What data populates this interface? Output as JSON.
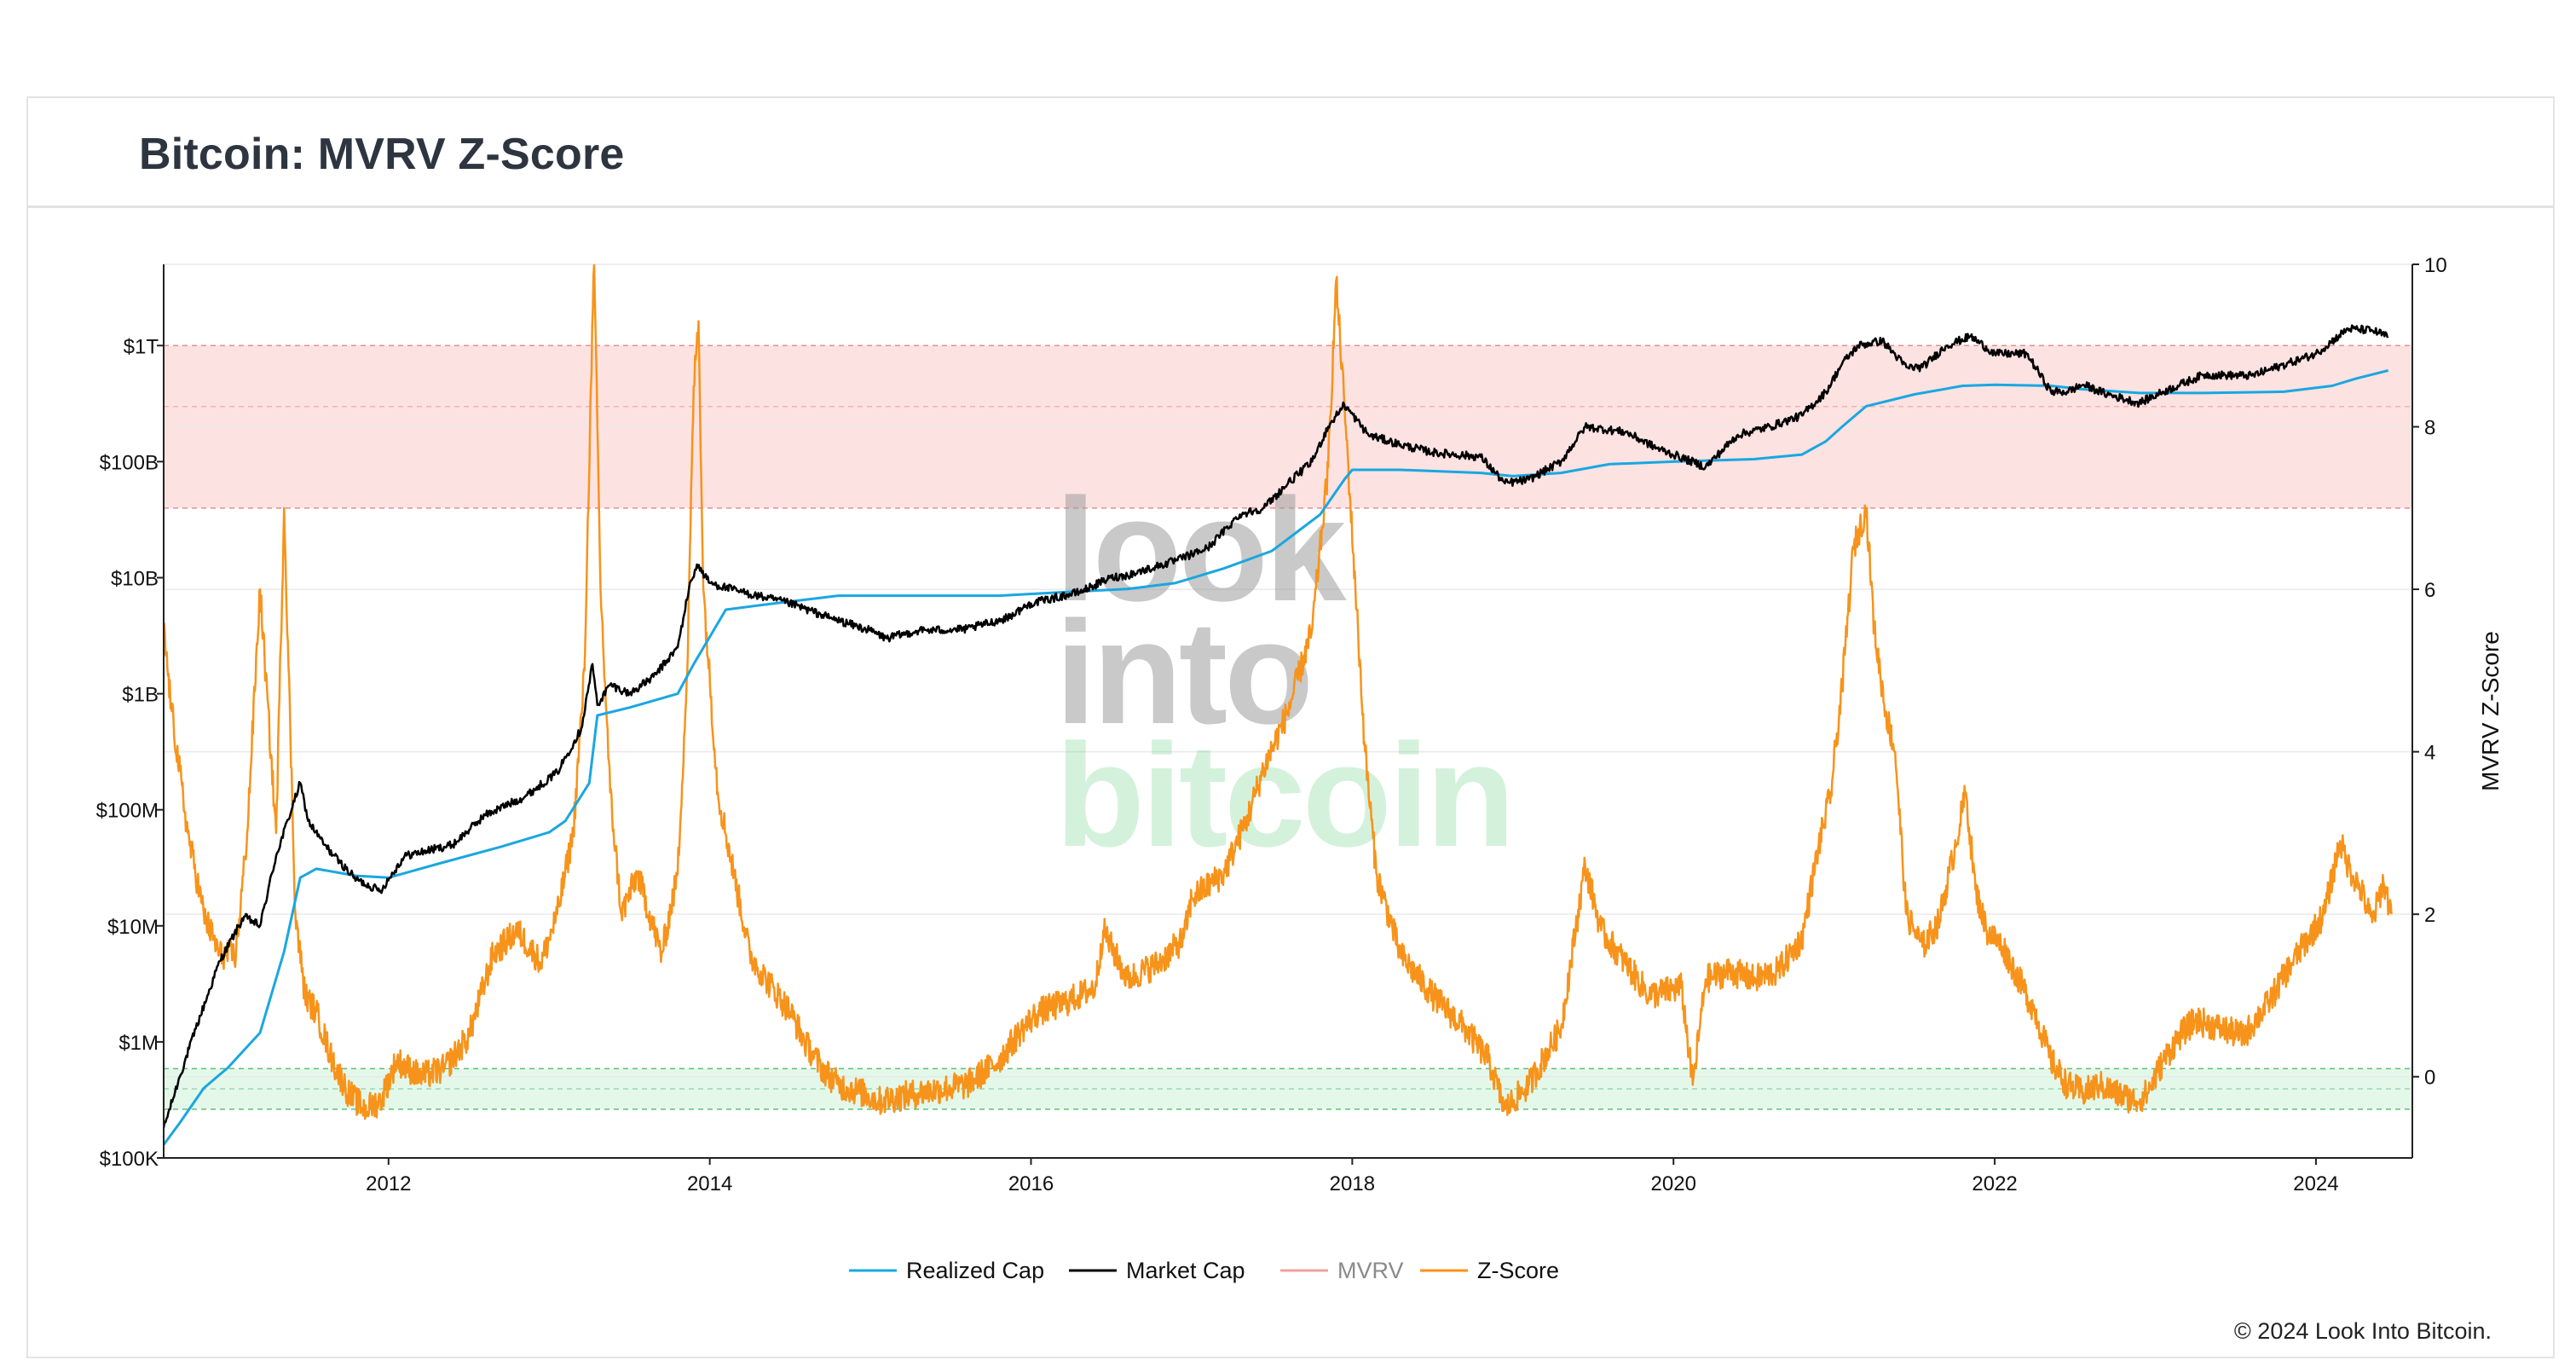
{
  "header": {
    "title": "Bitcoin: MVRV Z-Score"
  },
  "watermark": {
    "line1": "look",
    "line2": "into",
    "line3": "bitcoin"
  },
  "footer": {
    "copyright": "© 2024 Look Into Bitcoin."
  },
  "colors": {
    "realized": "#1aa7e0",
    "market": "#000000",
    "mvrv": "#f4a0a0",
    "zscore": "#f7931a",
    "red_zone": "#fde2e2",
    "green_zone": "#e4f8ea"
  },
  "chart_data": {
    "type": "line",
    "title": "Bitcoin: MVRV Z-Score",
    "x_axis": {
      "range": [
        2010.6,
        2024.6
      ],
      "ticks": [
        "2012",
        "2014",
        "2016",
        "2018",
        "2020",
        "2022",
        "2024"
      ],
      "grid": false
    },
    "y_left": {
      "scale": "log",
      "range_log10": [
        5.0,
        12.7
      ],
      "ticks": [
        {
          "label": "$100K",
          "value": 100000
        },
        {
          "label": "$1M",
          "value": 1000000
        },
        {
          "label": "$10M",
          "value": 10000000
        },
        {
          "label": "$100M",
          "value": 100000000
        },
        {
          "label": "$1B",
          "value": 1000000000
        },
        {
          "label": "$10B",
          "value": 10000000000
        },
        {
          "label": "$100B",
          "value": 100000000000
        },
        {
          "label": "$1T",
          "value": 1000000000000
        }
      ]
    },
    "y_right": {
      "label": "MVRV Z-Score",
      "range": [
        -1.0,
        10.0
      ],
      "ticks": [
        "0",
        "2",
        "4",
        "6",
        "8",
        "10"
      ]
    },
    "zones": {
      "red": {
        "from": 7.0,
        "to": 9.0,
        "inner_line": 8.25
      },
      "green": {
        "from": -0.4,
        "to": 0.1,
        "inner_line": -0.15
      }
    },
    "legend": {
      "position": "bottom-center"
    },
    "series": [
      {
        "name": "Realized Cap",
        "axis": "left",
        "x": [
          2010.6,
          2010.7,
          2010.85,
          2011.0,
          2011.2,
          2011.35,
          2011.45,
          2011.55,
          2011.8,
          2012.0,
          2012.3,
          2012.7,
          2013.0,
          2013.1,
          2013.25,
          2013.3,
          2013.5,
          2013.8,
          2013.9,
          2014.1,
          2014.4,
          2014.8,
          2015.2,
          2015.8,
          2016.2,
          2016.6,
          2016.9,
          2017.2,
          2017.5,
          2017.8,
          2017.95,
          2018.0,
          2018.3,
          2018.8,
          2019.0,
          2019.3,
          2019.6,
          2020.0,
          2020.5,
          2020.8,
          2020.95,
          2021.05,
          2021.2,
          2021.5,
          2021.8,
          2022.0,
          2022.35,
          2022.55,
          2022.9,
          2023.3,
          2023.8,
          2024.1,
          2024.25,
          2024.45
        ],
        "values": [
          130000,
          200000,
          400000,
          600000,
          1200000,
          6000000,
          26000000,
          31000000,
          27000000,
          26000000,
          34000000,
          48000000,
          64000000,
          80000000,
          170000000,
          650000000,
          760000000,
          1000000000,
          1800000000,
          5300000000,
          6000000000,
          7000000000,
          7000000000,
          7000000000,
          7500000000,
          8000000000,
          9000000000,
          12000000000,
          17000000000,
          35000000000,
          70000000000,
          85000000000,
          85000000000,
          80000000000,
          75000000000,
          80000000000,
          95000000000,
          100000000000,
          105000000000,
          115000000000,
          150000000000,
          200000000000,
          300000000000,
          380000000000,
          450000000000,
          460000000000,
          450000000000,
          420000000000,
          390000000000,
          390000000000,
          400000000000,
          450000000000,
          520000000000,
          610000000000
        ]
      },
      {
        "name": "Market Cap",
        "axis": "left",
        "x": [
          2010.6,
          2010.7,
          2010.8,
          2010.95,
          2011.1,
          2011.2,
          2011.3,
          2011.45,
          2011.5,
          2011.6,
          2011.7,
          2011.8,
          2011.95,
          2012.1,
          2012.4,
          2012.6,
          2012.85,
          2013.05,
          2013.2,
          2013.27,
          2013.3,
          2013.38,
          2013.5,
          2013.65,
          2013.8,
          2013.87,
          2013.92,
          2014.0,
          2014.2,
          2014.5,
          2014.75,
          2015.0,
          2015.1,
          2015.3,
          2015.6,
          2015.85,
          2016.0,
          2016.3,
          2016.5,
          2016.6,
          2016.9,
          2017.1,
          2017.3,
          2017.45,
          2017.6,
          2017.75,
          2017.85,
          2017.95,
          2018.1,
          2018.3,
          2018.5,
          2018.8,
          2018.95,
          2019.1,
          2019.3,
          2019.45,
          2019.7,
          2019.9,
          2020.2,
          2020.4,
          2020.6,
          2020.8,
          2020.95,
          2021.05,
          2021.15,
          2021.3,
          2021.45,
          2021.55,
          2021.7,
          2021.85,
          2022.0,
          2022.2,
          2022.35,
          2022.45,
          2022.55,
          2022.7,
          2022.9,
          2023.05,
          2023.3,
          2023.6,
          2023.85,
          2024.0,
          2024.2,
          2024.35,
          2024.45
        ],
        "values": [
          180000,
          500000,
          1300000,
          5000000,
          12000000,
          10000000,
          40000000,
          170000000,
          80000000,
          50000000,
          35000000,
          25000000,
          20000000,
          40000000,
          50000000,
          90000000,
          130000000,
          210000000,
          500000000,
          1800000000,
          800000000,
          1200000000,
          1000000000,
          1400000000,
          2500000000,
          8000000000,
          13000000000,
          9000000000,
          7500000000,
          6000000000,
          4500000000,
          3500000000,
          3000000000,
          3500000000,
          3600000000,
          4500000000,
          6000000000,
          7500000000,
          10000000000,
          10500000000,
          14000000000,
          18000000000,
          35000000000,
          40000000000,
          65000000000,
          100000000000,
          200000000000,
          310000000000,
          170000000000,
          140000000000,
          120000000000,
          110000000000,
          65000000000,
          70000000000,
          100000000000,
          200000000000,
          180000000000,
          130000000000,
          90000000000,
          170000000000,
          200000000000,
          250000000000,
          400000000000,
          700000000000,
          1000000000000,
          1100000000000,
          650000000000,
          650000000000,
          1000000000000,
          1200000000000,
          850000000000,
          850000000000,
          400000000000,
          400000000000,
          460000000000,
          380000000000,
          320000000000,
          400000000000,
          560000000000,
          550000000000,
          720000000000,
          850000000000,
          1400000000000,
          1350000000000,
          1200000000000
        ]
      },
      {
        "name": "MVRV",
        "axis": "left",
        "x": [],
        "values": []
      },
      {
        "name": "Z-Score",
        "axis": "right",
        "x": [
          2010.6,
          2010.65,
          2010.75,
          2010.85,
          2010.95,
          2011.05,
          2011.12,
          2011.2,
          2011.3,
          2011.35,
          2011.42,
          2011.48,
          2011.55,
          2011.65,
          2011.75,
          2011.85,
          2011.95,
          2012.05,
          2012.2,
          2012.35,
          2012.5,
          2012.65,
          2012.8,
          2012.95,
          2013.05,
          2013.15,
          2013.22,
          2013.26,
          2013.28,
          2013.32,
          2013.38,
          2013.45,
          2013.55,
          2013.7,
          2013.8,
          2013.86,
          2013.9,
          2013.93,
          2013.96,
          2014.05,
          2014.15,
          2014.25,
          2014.35,
          2014.5,
          2014.6,
          2014.7,
          2014.8,
          2014.95,
          2015.05,
          2015.3,
          2015.6,
          2015.8,
          2015.95,
          2016.05,
          2016.2,
          2016.4,
          2016.45,
          2016.6,
          2016.8,
          2016.95,
          2017.0,
          2017.2,
          2017.35,
          2017.45,
          2017.6,
          2017.75,
          2017.85,
          2017.9,
          2017.96,
          2018.02,
          2018.08,
          2018.15,
          2018.3,
          2018.5,
          2018.7,
          2018.85,
          2018.95,
          2019.1,
          2019.3,
          2019.45,
          2019.55,
          2019.7,
          2019.85,
          2020.05,
          2020.12,
          2020.2,
          2020.35,
          2020.5,
          2020.65,
          2020.8,
          2020.9,
          2020.98,
          2021.05,
          2021.12,
          2021.2,
          2021.25,
          2021.32,
          2021.38,
          2021.45,
          2021.55,
          2021.65,
          2021.75,
          2021.82,
          2021.88,
          2021.95,
          2022.05,
          2022.15,
          2022.25,
          2022.35,
          2022.45,
          2022.55,
          2022.65,
          2022.75,
          2022.88,
          2022.95,
          2023.05,
          2023.15,
          2023.25,
          2023.4,
          2023.55,
          2023.7,
          2023.85,
          2023.95,
          2024.05,
          2024.15,
          2024.2,
          2024.28,
          2024.35,
          2024.42,
          2024.47
        ],
        "values": [
          5.5,
          4.5,
          3.0,
          2.0,
          1.5,
          1.5,
          3.0,
          6.0,
          3.0,
          7.0,
          2.0,
          1.0,
          0.8,
          0.2,
          -0.2,
          -0.4,
          -0.3,
          0.2,
          0.0,
          0.1,
          0.5,
          1.5,
          1.8,
          1.4,
          2.0,
          3.0,
          5.0,
          8.5,
          10.0,
          6.0,
          3.5,
          2.0,
          2.5,
          1.5,
          2.5,
          5.0,
          8.5,
          9.3,
          6.0,
          3.5,
          2.5,
          1.5,
          1.2,
          0.8,
          0.4,
          0.1,
          -0.1,
          -0.2,
          -0.3,
          -0.2,
          -0.1,
          0.2,
          0.6,
          0.8,
          0.9,
          1.1,
          1.8,
          1.2,
          1.4,
          1.7,
          2.2,
          2.5,
          3.2,
          3.8,
          4.5,
          5.5,
          7.5,
          9.8,
          8.0,
          6.0,
          4.0,
          2.5,
          1.5,
          1.0,
          0.6,
          0.2,
          -0.4,
          -0.1,
          0.6,
          2.6,
          1.8,
          1.4,
          1.0,
          1.1,
          -0.1,
          1.2,
          1.3,
          1.2,
          1.3,
          1.7,
          2.8,
          3.5,
          4.8,
          6.5,
          7.0,
          5.5,
          4.5,
          4.0,
          2.0,
          1.6,
          1.9,
          2.8,
          3.5,
          2.3,
          1.8,
          1.6,
          1.2,
          0.8,
          0.2,
          -0.1,
          -0.2,
          -0.1,
          -0.2,
          -0.3,
          -0.2,
          0.2,
          0.5,
          0.7,
          0.6,
          0.5,
          0.9,
          1.4,
          1.7,
          2.0,
          2.9,
          2.6,
          2.3,
          1.9,
          2.4,
          2.0
        ]
      }
    ]
  }
}
